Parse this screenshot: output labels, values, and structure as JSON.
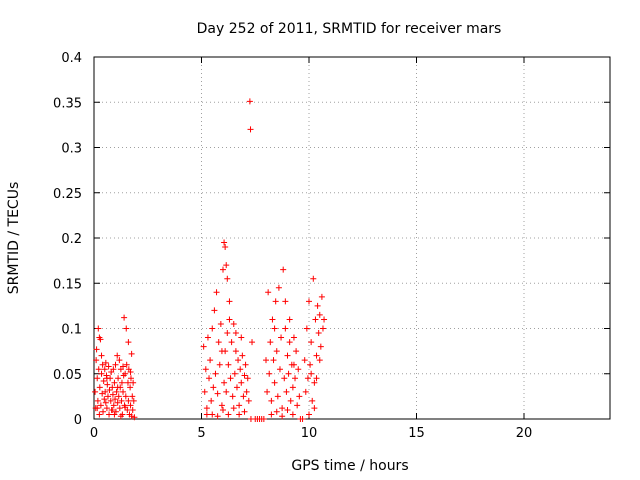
{
  "chart_data": {
    "type": "scatter",
    "title": "Day 252 of 2011, SRMTID for receiver mars",
    "xlabel": "GPS time / hours",
    "ylabel": "SRMTID / TECUs",
    "xlim": [
      0,
      24
    ],
    "ylim": [
      0,
      0.4
    ],
    "xticks": [
      0,
      5,
      10,
      15,
      20
    ],
    "xtick_labels": [
      "0",
      "5",
      "10",
      "15",
      "20"
    ],
    "yticks": [
      0,
      0.05,
      0.1,
      0.15,
      0.2,
      0.25,
      0.3,
      0.35,
      0.4
    ],
    "ytick_labels": [
      "0",
      "0.05",
      "0.1",
      "0.15",
      "0.2",
      "0.25",
      "0.3",
      "0.35",
      "0.4"
    ],
    "grid": true,
    "marker": "plus",
    "color": "#ff0000",
    "series": [
      {
        "points": [
          [
            0.05,
            0.03
          ],
          [
            0.08,
            0.012
          ],
          [
            0.1,
            0.065
          ],
          [
            0.12,
            0.077
          ],
          [
            0.15,
            0.045
          ],
          [
            0.18,
            0.02
          ],
          [
            0.2,
            0.1
          ],
          [
            0.22,
            0.055
          ],
          [
            0.25,
            0.09
          ],
          [
            0.27,
            0.035
          ],
          [
            0.3,
            0.088
          ],
          [
            0.32,
            0.015
          ],
          [
            0.35,
            0.05
          ],
          [
            0.38,
            0.028
          ],
          [
            0.4,
            0.06
          ],
          [
            0.42,
            0.008
          ],
          [
            0.45,
            0.042
          ],
          [
            0.48,
            0.022
          ],
          [
            0.5,
            0.055
          ],
          [
            0.52,
            0.03
          ],
          [
            0.55,
            0.018
          ],
          [
            0.58,
            0.048
          ],
          [
            0.6,
            0.012
          ],
          [
            0.62,
            0.038
          ],
          [
            0.65,
            0.025
          ],
          [
            0.68,
            0.058
          ],
          [
            0.7,
            0.005
          ],
          [
            0.72,
            0.032
          ],
          [
            0.75,
            0.045
          ],
          [
            0.78,
            0.02
          ],
          [
            0.8,
            0.052
          ],
          [
            0.82,
            0.01
          ],
          [
            0.85,
            0.035
          ],
          [
            0.88,
            0.027
          ],
          [
            0.9,
            0.055
          ],
          [
            0.92,
            0.015
          ],
          [
            0.95,
            0.04
          ],
          [
            0.98,
            0.022
          ],
          [
            1.0,
            0.06
          ],
          [
            1.02,
            0.008
          ],
          [
            1.05,
            0.03
          ],
          [
            1.08,
            0.07
          ],
          [
            1.1,
            0.018
          ],
          [
            1.12,
            0.045
          ],
          [
            1.15,
            0.025
          ],
          [
            1.18,
            0.065
          ],
          [
            1.2,
            0.012
          ],
          [
            1.22,
            0.035
          ],
          [
            1.25,
            0.055
          ],
          [
            1.28,
            0.02
          ],
          [
            1.3,
            0.04
          ],
          [
            1.32,
            0.005
          ],
          [
            1.35,
            0.03
          ],
          [
            1.38,
            0.048
          ],
          [
            1.4,
            0.112
          ],
          [
            1.42,
            0.015
          ],
          [
            1.45,
            0.05
          ],
          [
            1.48,
            0.025
          ],
          [
            1.5,
            0.1
          ],
          [
            1.52,
            0.06
          ],
          [
            1.55,
            0.01
          ],
          [
            1.58,
            0.04
          ],
          [
            1.6,
            0.02
          ],
          [
            1.62,
            0.055
          ],
          [
            1.65,
            0.005
          ],
          [
            1.68,
            0.035
          ],
          [
            1.7,
            0.015
          ],
          [
            1.72,
            0.045
          ],
          [
            1.75,
            0.072
          ],
          [
            1.78,
            0.025
          ],
          [
            1.8,
            0.01
          ],
          [
            1.82,
            0.04
          ],
          [
            1.85,
            0.02
          ],
          [
            1.88,
            0.002
          ],
          [
            0.15,
            0.012
          ],
          [
            0.35,
            0.07
          ],
          [
            0.6,
            0.045
          ],
          [
            0.85,
            0.01
          ],
          [
            1.1,
            0.035
          ],
          [
            1.35,
            0.058
          ],
          [
            1.6,
            0.085
          ],
          [
            1.7,
            0.052
          ],
          [
            0.25,
            0.005
          ],
          [
            0.55,
            0.062
          ],
          [
            0.95,
            0.005
          ],
          [
            1.25,
            0.003
          ],
          [
            1.45,
            0.013
          ],
          [
            1.75,
            0.003
          ],
          [
            5.1,
            0.08
          ],
          [
            5.15,
            0.03
          ],
          [
            5.2,
            0.055
          ],
          [
            5.25,
            0.012
          ],
          [
            5.3,
            0.09
          ],
          [
            5.35,
            0.045
          ],
          [
            5.4,
            0.065
          ],
          [
            5.45,
            0.02
          ],
          [
            5.5,
            0.1
          ],
          [
            5.55,
            0.035
          ],
          [
            5.6,
            0.12
          ],
          [
            5.65,
            0.05
          ],
          [
            5.7,
            0.14
          ],
          [
            5.75,
            0.028
          ],
          [
            5.8,
            0.085
          ],
          [
            5.85,
            0.06
          ],
          [
            5.9,
            0.105
          ],
          [
            5.95,
            0.015
          ],
          [
            6.0,
            0.165
          ],
          [
            6.05,
            0.04
          ],
          [
            6.05,
            0.195
          ],
          [
            6.1,
            0.19
          ],
          [
            6.1,
            0.075
          ],
          [
            6.15,
            0.17
          ],
          [
            6.15,
            0.03
          ],
          [
            6.2,
            0.155
          ],
          [
            6.2,
            0.095
          ],
          [
            6.25,
            0.06
          ],
          [
            6.3,
            0.11
          ],
          [
            6.35,
            0.045
          ],
          [
            6.4,
            0.085
          ],
          [
            6.45,
            0.025
          ],
          [
            6.5,
            0.105
          ],
          [
            6.55,
            0.05
          ],
          [
            6.6,
            0.075
          ],
          [
            6.65,
            0.035
          ],
          [
            6.7,
            0.065
          ],
          [
            6.75,
            0.015
          ],
          [
            6.8,
            0.055
          ],
          [
            6.85,
            0.04
          ],
          [
            6.9,
            0.07
          ],
          [
            6.95,
            0.025
          ],
          [
            7.0,
            0.048
          ],
          [
            7.05,
            0.06
          ],
          [
            7.1,
            0.03
          ],
          [
            7.15,
            0.045
          ],
          [
            7.2,
            0.02
          ],
          [
            7.25,
            0.351
          ],
          [
            7.28,
            0.32
          ],
          [
            7.3,
            0.0
          ],
          [
            7.35,
            0.085
          ],
          [
            7.5,
            0.0
          ],
          [
            7.6,
            0.0
          ],
          [
            7.7,
            0.0
          ],
          [
            7.8,
            0.0
          ],
          [
            7.9,
            0.0
          ],
          [
            8.0,
            0.065
          ],
          [
            8.05,
            0.03
          ],
          [
            8.1,
            0.14
          ],
          [
            8.15,
            0.05
          ],
          [
            8.2,
            0.085
          ],
          [
            8.25,
            0.02
          ],
          [
            8.3,
            0.11
          ],
          [
            8.35,
            0.065
          ],
          [
            8.4,
            0.04
          ],
          [
            8.45,
            0.13
          ],
          [
            8.5,
            0.075
          ],
          [
            8.55,
            0.025
          ],
          [
            8.6,
            0.145
          ],
          [
            8.65,
            0.055
          ],
          [
            8.7,
            0.09
          ],
          [
            8.75,
            0.012
          ],
          [
            8.8,
            0.165
          ],
          [
            8.85,
            0.045
          ],
          [
            8.9,
            0.1
          ],
          [
            8.95,
            0.03
          ],
          [
            9.0,
            0.07
          ],
          [
            9.05,
            0.05
          ],
          [
            9.1,
            0.085
          ],
          [
            9.15,
            0.02
          ],
          [
            9.2,
            0.06
          ],
          [
            9.25,
            0.035
          ],
          [
            9.3,
            0.09
          ],
          [
            9.35,
            0.045
          ],
          [
            9.4,
            0.075
          ],
          [
            9.45,
            0.015
          ],
          [
            9.5,
            0.055
          ],
          [
            9.55,
            0.025
          ],
          [
            9.6,
            0.0
          ],
          [
            9.7,
            0.0
          ],
          [
            9.8,
            0.065
          ],
          [
            9.85,
            0.03
          ],
          [
            9.9,
            0.1
          ],
          [
            9.95,
            0.045
          ],
          [
            10.0,
            0.13
          ],
          [
            10.05,
            0.06
          ],
          [
            10.1,
            0.085
          ],
          [
            10.15,
            0.02
          ],
          [
            10.2,
            0.155
          ],
          [
            10.25,
            0.04
          ],
          [
            10.3,
            0.11
          ],
          [
            10.35,
            0.07
          ],
          [
            10.4,
            0.125
          ],
          [
            10.45,
            0.095
          ],
          [
            10.5,
            0.115
          ],
          [
            10.55,
            0.08
          ],
          [
            10.6,
            0.135
          ],
          [
            10.65,
            0.1
          ],
          [
            10.7,
            0.11
          ],
          [
            5.25,
            0.005
          ],
          [
            5.5,
            0.005
          ],
          [
            5.75,
            0.003
          ],
          [
            6.0,
            0.01
          ],
          [
            6.25,
            0.005
          ],
          [
            6.5,
            0.012
          ],
          [
            6.75,
            0.005
          ],
          [
            7.0,
            0.008
          ],
          [
            8.25,
            0.005
          ],
          [
            8.5,
            0.008
          ],
          [
            8.75,
            0.003
          ],
          [
            9.0,
            0.01
          ],
          [
            9.25,
            0.005
          ],
          [
            10.0,
            0.005
          ],
          [
            10.25,
            0.012
          ],
          [
            10.5,
            0.065
          ],
          [
            6.3,
            0.13
          ],
          [
            6.6,
            0.095
          ],
          [
            8.4,
            0.1
          ],
          [
            9.1,
            0.11
          ],
          [
            9.3,
            0.06
          ],
          [
            10.1,
            0.05
          ],
          [
            6.85,
            0.09
          ],
          [
            5.95,
            0.075
          ],
          [
            8.9,
            0.13
          ],
          [
            10.35,
            0.045
          ]
        ]
      }
    ]
  }
}
